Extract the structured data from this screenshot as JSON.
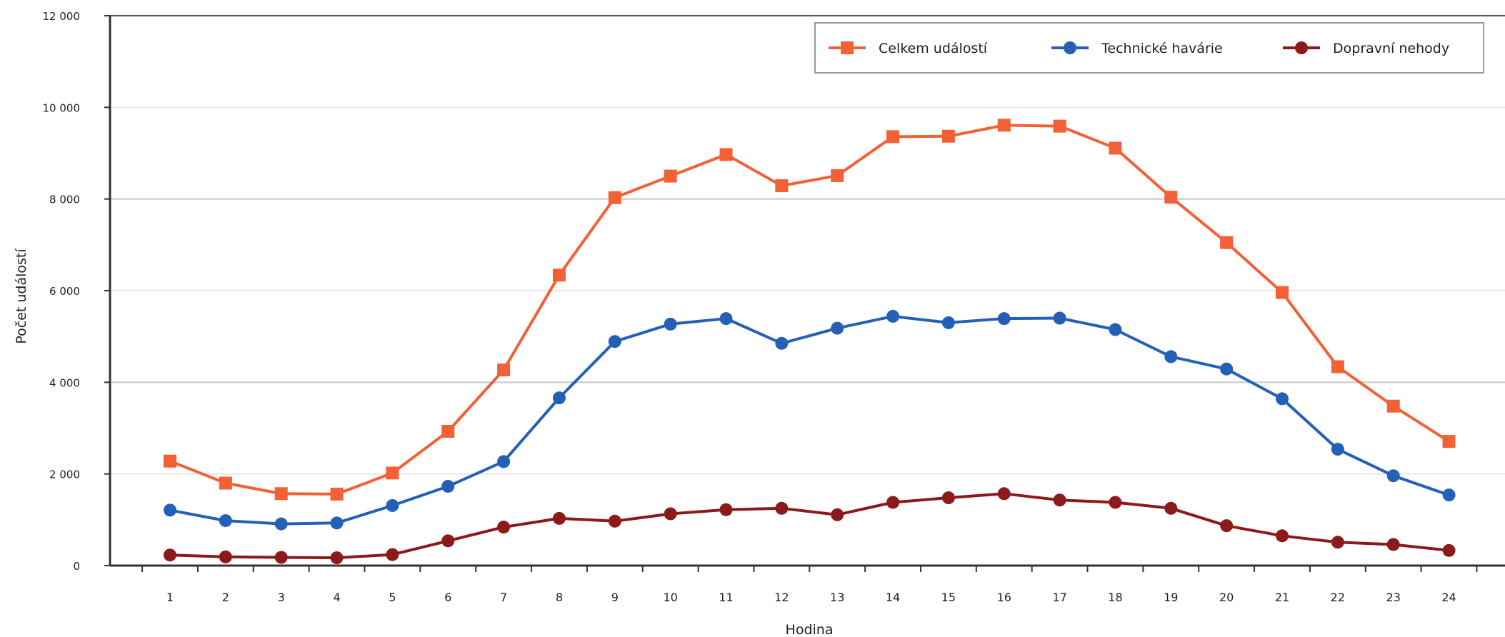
{
  "chart_data": {
    "type": "line",
    "title": "",
    "xlabel": "Hodina",
    "ylabel": "Počet událostí",
    "categories": [
      "1",
      "2",
      "3",
      "4",
      "5",
      "6",
      "7",
      "8",
      "9",
      "10",
      "11",
      "12",
      "13",
      "14",
      "15",
      "16",
      "17",
      "18",
      "19",
      "20",
      "21",
      "22",
      "23",
      "24"
    ],
    "x_tick_labels": [
      "1",
      "2",
      "3",
      "4",
      "5",
      "6",
      "7",
      "8",
      "9",
      "10",
      "11",
      "12",
      "13",
      "14",
      "15",
      "16",
      "17",
      "18",
      "19",
      "20",
      "21",
      "22",
      "23",
      "24"
    ],
    "ylim": [
      0,
      12000
    ],
    "y_ticks": [
      0,
      2000,
      4000,
      6000,
      8000,
      10000,
      12000
    ],
    "y_tick_labels": [
      "0",
      "2 000",
      "4 000",
      "6 000",
      "8 000",
      "10 000",
      "12 000"
    ],
    "grid": true,
    "legend_position": "top-right",
    "series": [
      {
        "name": "Celkem událostí",
        "color": "#F26135",
        "marker": "square",
        "values": [
          2280,
          1800,
          1570,
          1560,
          2020,
          2930,
          4270,
          6340,
          8030,
          8500,
          8970,
          8290,
          8510,
          9360,
          9370,
          9610,
          9590,
          9110,
          8040,
          7050,
          5960,
          4340,
          3480,
          2710
        ]
      },
      {
        "name": "Technické havárie",
        "color": "#2460B6",
        "marker": "circle",
        "values": [
          1210,
          980,
          910,
          930,
          1310,
          1730,
          2270,
          3660,
          4890,
          5270,
          5390,
          4850,
          5180,
          5440,
          5300,
          5390,
          5400,
          5150,
          4560,
          4290,
          3640,
          2540,
          1960,
          1540
        ]
      },
      {
        "name": "Dopravní nehody",
        "color": "#8C1A1A",
        "marker": "circle",
        "values": [
          230,
          190,
          180,
          170,
          240,
          540,
          840,
          1030,
          970,
          1130,
          1220,
          1250,
          1110,
          1380,
          1480,
          1570,
          1430,
          1380,
          1250,
          870,
          650,
          510,
          460,
          330
        ]
      }
    ]
  }
}
